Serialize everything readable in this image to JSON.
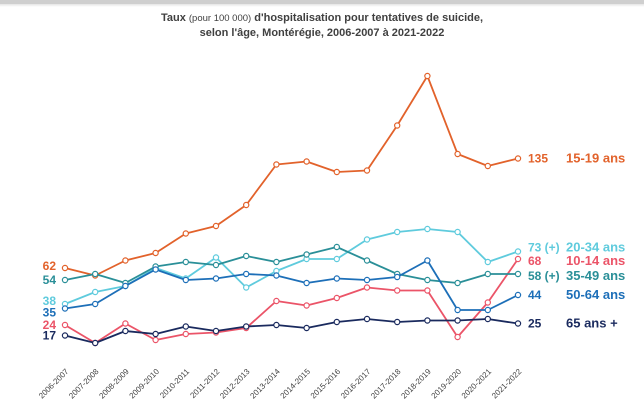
{
  "chart_data": {
    "type": "line",
    "title_part1": "Taux",
    "title_part2": "(pour 100 000)",
    "title_part3": "d'hospitalisation pour tentatives de suicide,",
    "title_line2": "selon l'âge, Montérégie, 2006-2007 à 2021-2022",
    "categories": [
      "2006-2007",
      "2007-2008",
      "2008-2009",
      "2009-2010",
      "2010-2011",
      "2011-2012",
      "2012-2013",
      "2013-2014",
      "2014-2015",
      "2015-2016",
      "2016-2017",
      "2017-2018",
      "2018-2019",
      "2019-2020",
      "2020-2021",
      "2021-2022"
    ],
    "ylim": [
      0,
      220
    ],
    "grid": false,
    "legend": "labels at line ends",
    "series": [
      {
        "name": "15-19 ans",
        "color": "#E2622B",
        "start_label": "62",
        "end_label": "135",
        "values": [
          62,
          57,
          67,
          72,
          85,
          90,
          104,
          131,
          133,
          126,
          127,
          157,
          190,
          138,
          130,
          135
        ]
      },
      {
        "name": "20-34 ans",
        "color": "#5FCBDD",
        "start_label": "38",
        "end_label": "73 (+)",
        "values": [
          38,
          46,
          50,
          62,
          55,
          69,
          49,
          60,
          68,
          68,
          81,
          86,
          88,
          86,
          66,
          73
        ]
      },
      {
        "name": "10-14 ans",
        "color": "#EB5468",
        "start_label": "24",
        "end_label": "68",
        "values": [
          24,
          12,
          25,
          14,
          18,
          19,
          22,
          40,
          37,
          42,
          49,
          47,
          47,
          16,
          39,
          68
        ]
      },
      {
        "name": "35-49 ans",
        "color": "#2A8F98",
        "start_label": "54",
        "end_label": "58 (+)",
        "values": [
          54,
          58,
          52,
          63,
          66,
          64,
          70,
          66,
          71,
          76,
          67,
          58,
          54,
          52,
          58,
          58
        ]
      },
      {
        "name": "50-64 ans",
        "color": "#1D6FB8",
        "start_label": "35",
        "end_label": "44",
        "values": [
          35,
          38,
          50,
          61,
          54,
          55,
          58,
          57,
          52,
          55,
          54,
          56,
          67,
          34,
          34,
          44
        ]
      },
      {
        "name": "65 ans +",
        "color": "#1A2A5E",
        "start_label": "17",
        "end_label": "25",
        "values": [
          17,
          12,
          20,
          18,
          23,
          20,
          23,
          24,
          22,
          26,
          28,
          26,
          27,
          27,
          28,
          25
        ]
      }
    ]
  }
}
